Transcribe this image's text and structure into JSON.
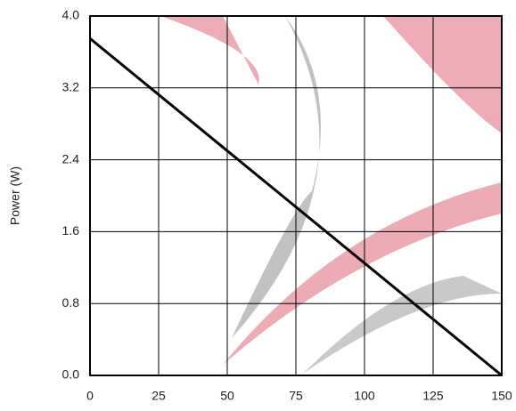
{
  "chart_data": {
    "type": "line",
    "ylabel": "Power (W)",
    "x": [
      0,
      150
    ],
    "series": [
      {
        "color": "#000000",
        "values": [
          3.75,
          0
        ]
      }
    ],
    "xlim": [
      0,
      150
    ],
    "xticks": [
      0,
      25,
      50,
      75,
      100,
      125,
      150
    ],
    "ylim": [
      0,
      4
    ],
    "yticks": [
      {
        "value": 0,
        "label": "0.0"
      },
      0.8,
      1.6,
      2.4,
      3.2,
      {
        "value": 4,
        "label": "4.0"
      }
    ],
    "grid": true
  }
}
